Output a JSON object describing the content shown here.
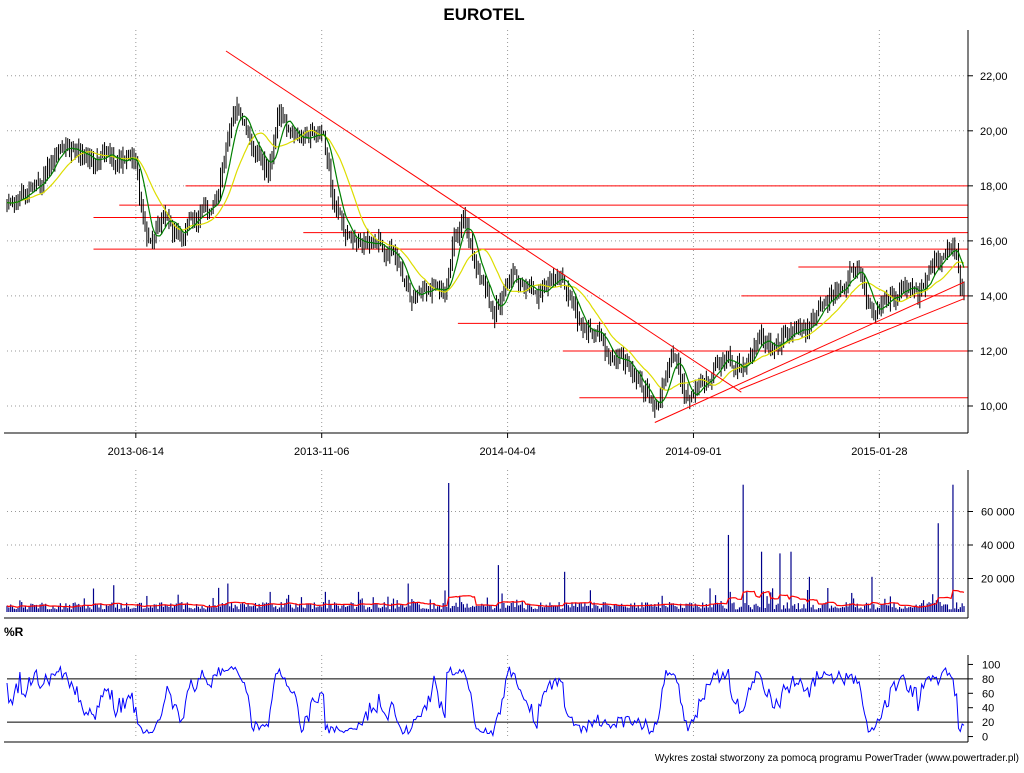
{
  "chart_data": [
    {
      "type": "ohlc",
      "title": "EUROTEL",
      "x_tick_labels": [
        "2013-06-14",
        "2013-11-06",
        "2014-04-04",
        "2014-09-01",
        "2015-01-28"
      ],
      "y_ticks": [
        10,
        12,
        14,
        16,
        18,
        20,
        22
      ],
      "y_tick_labels": [
        "10,00",
        "12,00",
        "14,00",
        "16,00",
        "18,00",
        "20,00",
        "22,00"
      ],
      "ylim": [
        9.2,
        23.3
      ],
      "grid": true,
      "price_path": [
        [
          0,
          17.2
        ],
        [
          10,
          17.7
        ],
        [
          20,
          18.5
        ],
        [
          34,
          19.4
        ],
        [
          46,
          19.0
        ],
        [
          60,
          19.0
        ],
        [
          70,
          18.8
        ],
        [
          74,
          16.6
        ],
        [
          78,
          16.0
        ],
        [
          82,
          16.2
        ],
        [
          87,
          16.9
        ],
        [
          92,
          16.1
        ],
        [
          96,
          16.3
        ],
        [
          100,
          16.7
        ],
        [
          104,
          16.9
        ],
        [
          110,
          17.2
        ],
        [
          114,
          17.8
        ],
        [
          120,
          19.5
        ],
        [
          125,
          21.0
        ],
        [
          130,
          20.0
        ],
        [
          136,
          19.0
        ],
        [
          142,
          18.5
        ],
        [
          148,
          20.8
        ],
        [
          154,
          19.8
        ],
        [
          160,
          19.5
        ],
        [
          166,
          20.0
        ],
        [
          172,
          19.6
        ],
        [
          176,
          18.0
        ],
        [
          182,
          16.7
        ],
        [
          186,
          16.1
        ],
        [
          194,
          15.8
        ],
        [
          202,
          16.1
        ],
        [
          208,
          15.7
        ],
        [
          214,
          14.9
        ],
        [
          220,
          14.1
        ],
        [
          228,
          14.3
        ],
        [
          234,
          14.5
        ],
        [
          238,
          14.1
        ],
        [
          244,
          16.3
        ],
        [
          248,
          16.8
        ],
        [
          252,
          15.8
        ],
        [
          256,
          14.8
        ],
        [
          260,
          14.4
        ],
        [
          264,
          13.3
        ],
        [
          270,
          14.1
        ],
        [
          276,
          14.9
        ],
        [
          282,
          14.3
        ],
        [
          288,
          14.1
        ],
        [
          294,
          14.5
        ],
        [
          302,
          14.7
        ],
        [
          306,
          13.9
        ],
        [
          310,
          13.0
        ],
        [
          316,
          12.8
        ],
        [
          322,
          12.6
        ],
        [
          326,
          11.9
        ],
        [
          334,
          11.7
        ],
        [
          340,
          11.1
        ],
        [
          346,
          10.6
        ],
        [
          352,
          10.0
        ],
        [
          354,
          10.3
        ],
        [
          358,
          11.4
        ],
        [
          362,
          11.9
        ],
        [
          366,
          11.0
        ],
        [
          370,
          10.3
        ],
        [
          374,
          10.6
        ],
        [
          378,
          11.1
        ],
        [
          386,
          11.5
        ],
        [
          394,
          11.6
        ],
        [
          400,
          11.3
        ],
        [
          404,
          12.0
        ],
        [
          408,
          12.9
        ],
        [
          414,
          12.3
        ],
        [
          420,
          12.5
        ],
        [
          428,
          12.6
        ],
        [
          434,
          12.9
        ],
        [
          440,
          13.3
        ],
        [
          446,
          13.8
        ],
        [
          452,
          14.2
        ],
        [
          458,
          14.9
        ],
        [
          464,
          14.9
        ],
        [
          468,
          13.6
        ],
        [
          474,
          13.6
        ],
        [
          480,
          13.9
        ],
        [
          486,
          14.1
        ],
        [
          492,
          14.2
        ],
        [
          496,
          13.9
        ],
        [
          502,
          15.1
        ],
        [
          506,
          15.1
        ],
        [
          512,
          15.7
        ],
        [
          516,
          15.6
        ],
        [
          518,
          14.3
        ],
        [
          520,
          14.2
        ]
      ],
      "trendlines": [
        {
          "from": [
            119,
            22.9
          ],
          "to": [
            399,
            10.5
          ],
          "color": "#ff0000"
        },
        {
          "from": [
            352,
            9.4
          ],
          "to": [
            520,
            14.5
          ],
          "color": "#ff0000"
        },
        {
          "from": [
            398,
            10.6
          ],
          "to": [
            520,
            13.9
          ],
          "color": "#ff0000"
        }
      ],
      "support_lines": [
        {
          "level": 18.0,
          "from": 97,
          "color": "#ff0000"
        },
        {
          "level": 17.3,
          "from": 61,
          "color": "#ff0000"
        },
        {
          "level": 16.85,
          "from": 47,
          "color": "#ff0000"
        },
        {
          "level": 16.3,
          "from": 161,
          "color": "#ff0000"
        },
        {
          "level": 15.7,
          "from": 47,
          "color": "#ff0000"
        },
        {
          "level": 15.05,
          "from": 430,
          "color": "#ff0000"
        },
        {
          "level": 14.0,
          "from": 399,
          "color": "#ff0000"
        },
        {
          "level": 13.0,
          "from": 245,
          "color": "#ff0000"
        },
        {
          "level": 12.0,
          "from": 302,
          "color": "#ff0000"
        },
        {
          "level": 10.3,
          "from": 311,
          "color": "#ff0000"
        }
      ]
    },
    {
      "type": "bar",
      "y_ticks": [
        20000,
        40000,
        60000
      ],
      "y_tick_labels": [
        "20 000",
        "40 000",
        "60 000"
      ],
      "ylim": [
        0,
        80000
      ],
      "spikes": [
        [
          240,
          77000
        ],
        [
          267,
          28000
        ],
        [
          392,
          46000
        ],
        [
          400,
          76000
        ],
        [
          410,
          36000
        ],
        [
          420,
          35000
        ],
        [
          426,
          36000
        ],
        [
          436,
          21000
        ],
        [
          470,
          21000
        ],
        [
          506,
          53000
        ],
        [
          514,
          76000
        ],
        [
          303,
          24000
        ],
        [
          218,
          17000
        ],
        [
          120,
          17000
        ],
        [
          58,
          16000
        ]
      ]
    },
    {
      "type": "line",
      "title": "%R",
      "y_ticks": [
        0,
        20,
        40,
        60,
        80,
        100
      ],
      "y_tick_labels": [
        "0",
        "20",
        "40",
        "60",
        "80",
        "100"
      ],
      "ylim": [
        -2,
        102
      ]
    }
  ],
  "footer": {
    "credit": "Wykres został stworzony za pomocą programu PowerTrader (www.powertrader.pl)"
  },
  "colors": {
    "candles": "#000000",
    "moving_average_short": "#008000",
    "moving_average_long": "#dddd00",
    "volume_bars": "#00008b",
    "volume_average": "#ff0000",
    "williams_r": "#0000ff",
    "trendlines": "#ff0000",
    "grid": "#999999"
  }
}
